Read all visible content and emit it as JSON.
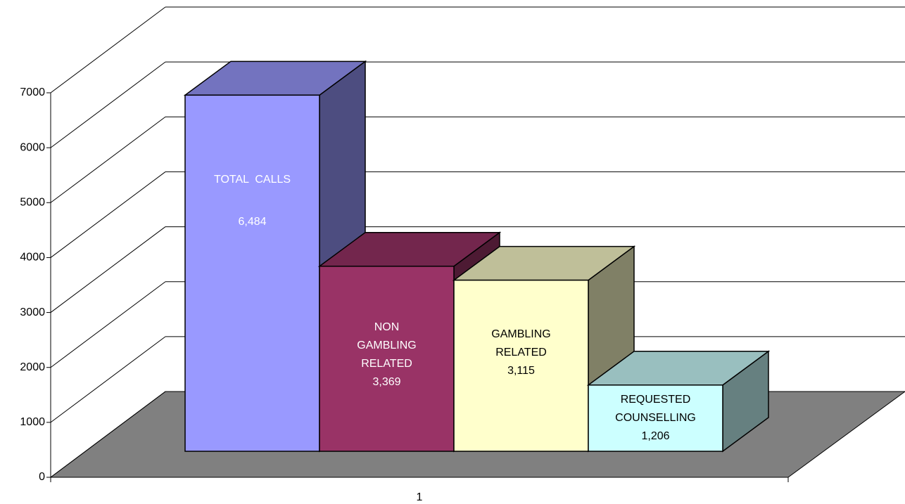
{
  "chart_data": {
    "type": "bar3d",
    "categories": [
      "1"
    ],
    "series": [
      {
        "name": "TOTAL  CALLS",
        "values": [
          6484
        ],
        "value_labels": [
          "6,484"
        ],
        "color": "#9999ff"
      },
      {
        "name": "NON GAMBLING RELATED",
        "values": [
          3369
        ],
        "value_labels": [
          "3,369"
        ],
        "color": "#993366"
      },
      {
        "name": "GAMBLING RELATED",
        "values": [
          3115
        ],
        "value_labels": [
          "3,115"
        ],
        "color": "#ffffcc"
      },
      {
        "name": "REQUESTED COUNSELLING",
        "values": [
          1206
        ],
        "value_labels": [
          "1,206"
        ],
        "color": "#ccffff"
      }
    ],
    "ylim": [
      0,
      7000
    ],
    "yticks": [
      0,
      1000,
      2000,
      3000,
      4000,
      5000,
      6000,
      7000
    ],
    "grid": true
  }
}
